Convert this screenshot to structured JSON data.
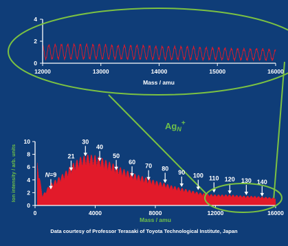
{
  "chart_data": [
    {
      "type": "line",
      "title": "",
      "xlabel": "Mass / amu",
      "ylabel": "",
      "xlim": [
        12000,
        16000
      ],
      "ylim": [
        0,
        4
      ],
      "x_ticks": [
        "12000",
        "13000",
        "14000",
        "15000",
        "16000"
      ],
      "y_ticks": [
        "0",
        "2",
        "4"
      ],
      "series": [
        {
          "color": "#e21a2a",
          "peak_spacing": 108,
          "x": [
            12000,
            12250,
            12500,
            12750,
            13000,
            13250,
            13500,
            13750,
            14000,
            14250,
            14500,
            14750,
            15000,
            15250,
            15500,
            15750,
            16000
          ],
          "y": [
            1.6,
            1.7,
            1.7,
            1.7,
            1.7,
            1.6,
            1.6,
            1.6,
            1.5,
            1.5,
            1.5,
            1.4,
            1.4,
            1.3,
            1.3,
            1.3,
            1.2
          ]
        }
      ]
    },
    {
      "type": "line",
      "title": "",
      "xlabel": "Mass / amu",
      "ylabel": "Ion intensity / arb. units",
      "xlim": [
        0,
        16000
      ],
      "ylim": [
        0,
        10
      ],
      "x_ticks": [
        "0",
        "4000",
        "8000",
        "12000",
        "16000"
      ],
      "y_ticks": [
        "0",
        "2",
        "4",
        "6",
        "8",
        "10"
      ],
      "series": [
        {
          "color": "#e21a2a",
          "peak_spacing": 108,
          "x": [
            0,
            500,
            1000,
            1500,
            2000,
            2500,
            3000,
            3500,
            4000,
            4500,
            5000,
            5500,
            6000,
            6500,
            7000,
            7500,
            8000,
            8500,
            9000,
            9500,
            10000,
            10500,
            11000,
            11500,
            12000,
            12500,
            13000,
            13500,
            14000,
            14500,
            15000,
            15500,
            16000
          ],
          "y": [
            9.0,
            1.6,
            3.4,
            4.3,
            5.3,
            6.6,
            7.6,
            8.0,
            7.9,
            7.4,
            6.8,
            6.2,
            5.6,
            5.1,
            4.7,
            4.3,
            3.9,
            3.6,
            3.2,
            2.9,
            2.6,
            2.3,
            2.0,
            1.8,
            1.7,
            1.7,
            1.7,
            1.6,
            1.5,
            1.5,
            1.4,
            1.3,
            1.2
          ]
        }
      ],
      "annotation": {
        "species": "Ag",
        "subscript": "N",
        "charge": "+"
      },
      "peak_labels": [
        {
          "text": "N=9",
          "x": 1050,
          "y": 2.4
        },
        {
          "text": "21",
          "x": 2400,
          "y": 5.3
        },
        {
          "text": "30",
          "x": 3350,
          "y": 7.6
        },
        {
          "text": "40",
          "x": 4300,
          "y": 6.8
        },
        {
          "text": "50",
          "x": 5400,
          "y": 5.4
        },
        {
          "text": "60",
          "x": 6450,
          "y": 4.4
        },
        {
          "text": "70",
          "x": 7550,
          "y": 3.8
        },
        {
          "text": "80",
          "x": 8650,
          "y": 3.4
        },
        {
          "text": "90",
          "x": 9750,
          "y": 2.8
        },
        {
          "text": "100",
          "x": 10850,
          "y": 2.3
        },
        {
          "text": "110",
          "x": 11900,
          "y": 1.9
        },
        {
          "text": "120",
          "x": 12950,
          "y": 1.7
        },
        {
          "text": "130",
          "x": 14050,
          "y": 1.5
        },
        {
          "text": "140",
          "x": 15100,
          "y": 1.3
        }
      ]
    }
  ],
  "credit": "Data courtesy of Professor Terasaki of Toyota Technological Institute, Japan",
  "colors": {
    "background": "#0f3d78",
    "spectrum": "#e21a2a",
    "highlight": "#7cc242",
    "axes": "#ffffff"
  }
}
